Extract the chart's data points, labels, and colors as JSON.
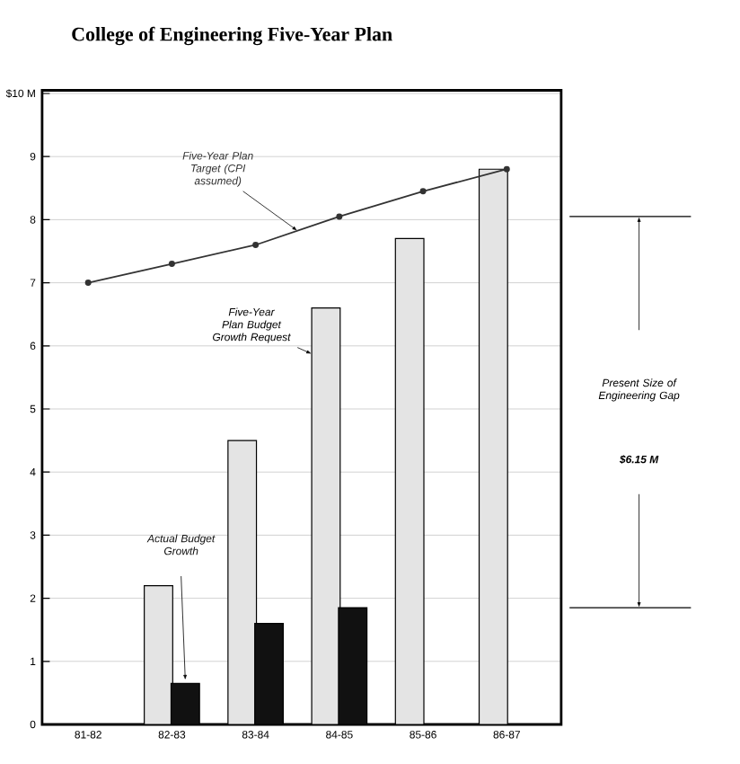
{
  "chart_data": {
    "type": "bar",
    "title": "College of Engineering Five-Year Plan",
    "categories": [
      "81-82",
      "82-83",
      "83-84",
      "84-85",
      "85-86",
      "86-87"
    ],
    "series": [
      {
        "name": "Five-Year Plan Budget Growth Request",
        "color": "#e4e4e4",
        "values": [
          null,
          2.2,
          4.5,
          6.6,
          7.7,
          8.8
        ]
      },
      {
        "name": "Actual Budget Growth",
        "color": "#111111",
        "values": [
          null,
          0.65,
          1.6,
          1.85,
          null,
          null
        ]
      },
      {
        "name": "Five-Year Plan Target (CPI assumed)",
        "type": "line",
        "color": "#333333",
        "marker": "circle",
        "values": [
          7.0,
          7.3,
          7.6,
          8.05,
          8.45,
          8.8
        ]
      }
    ],
    "ylim": [
      0,
      10.05
    ],
    "yticks": [
      0,
      1,
      2,
      3,
      4,
      5,
      6,
      7,
      8,
      9,
      {
        "value": 10,
        "label": "$10 M"
      }
    ],
    "grid": "y",
    "annotations": [
      "Present Size of Engineering Gap",
      "$6.15 M"
    ]
  }
}
